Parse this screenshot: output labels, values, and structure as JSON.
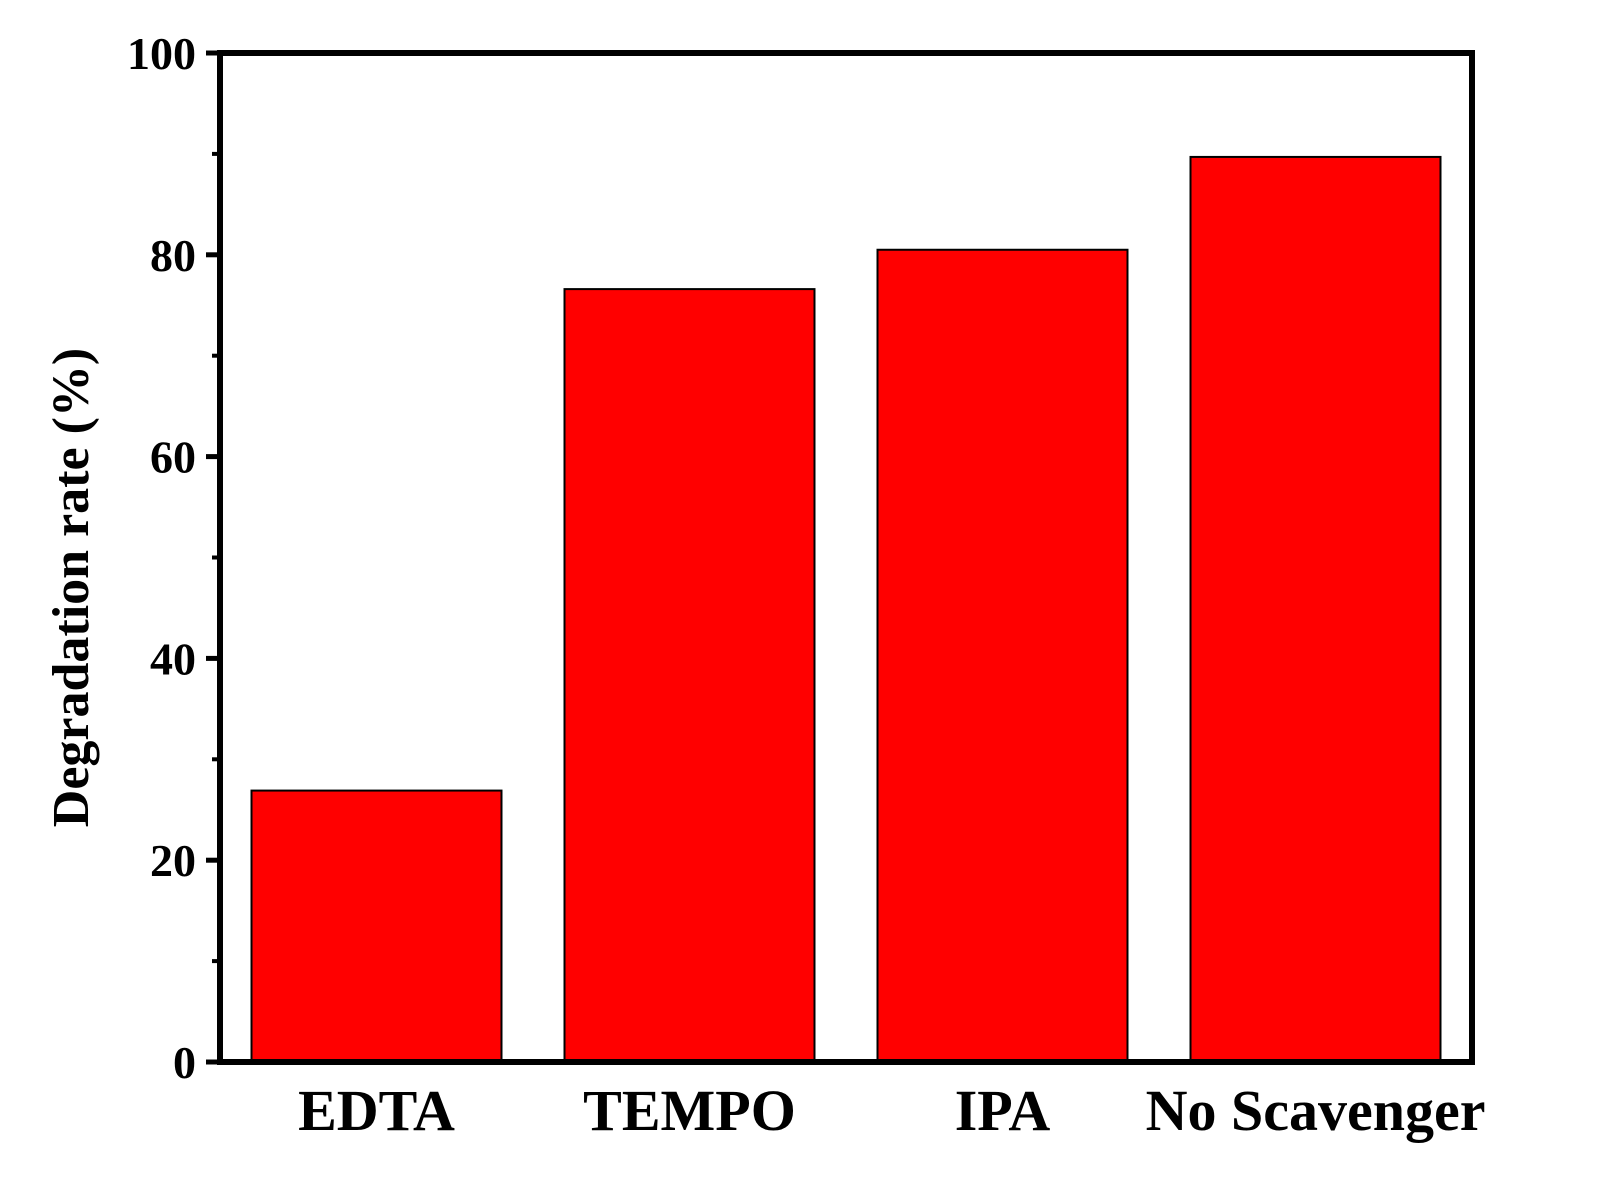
{
  "chart_data": {
    "type": "bar",
    "categories": [
      "EDTA",
      "TEMPO",
      "IPA",
      "No Scavenger"
    ],
    "values": [
      26.9,
      76.6,
      80.5,
      89.7
    ],
    "title": "",
    "xlabel": "",
    "ylabel": "Degradation rate (%)",
    "ylim": [
      0,
      100
    ],
    "yticks": [
      0,
      20,
      40,
      60,
      80,
      100
    ],
    "yticks_minor": [
      10,
      30,
      50,
      70,
      90
    ],
    "grid": false,
    "legend": "none",
    "colors": {
      "bar_fill": "#ff0000",
      "bar_stroke": "#000000",
      "axis": "#000000"
    }
  }
}
